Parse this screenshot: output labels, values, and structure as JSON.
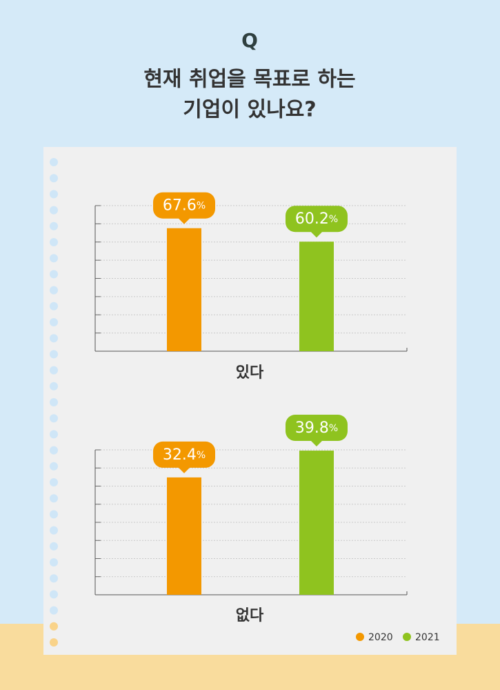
{
  "header": {
    "mark": "Q",
    "title_lines": [
      "현재 취업을 목표로 하는",
      "기업이 있나요?"
    ]
  },
  "chart_data": [
    {
      "type": "bar",
      "categories": [
        "있다"
      ],
      "series": [
        {
          "name": "2020",
          "color": "#f39800",
          "values": [
            67.6
          ],
          "value_labels": [
            "67.6%"
          ]
        },
        {
          "name": "2021",
          "color": "#8fc31f",
          "values": [
            60.2
          ],
          "value_labels": [
            "60.2%"
          ]
        }
      ],
      "ylim": [
        0,
        80
      ],
      "yticks": [
        0,
        10,
        20,
        30,
        40,
        50,
        60,
        70,
        80
      ],
      "grid": true
    },
    {
      "type": "bar",
      "categories": [
        "없다"
      ],
      "series": [
        {
          "name": "2020",
          "color": "#f39800",
          "values": [
            32.4
          ],
          "value_labels": [
            "32.4%"
          ]
        },
        {
          "name": "2021",
          "color": "#8fc31f",
          "values": [
            39.8
          ],
          "value_labels": [
            "39.8%"
          ]
        }
      ],
      "ylim": [
        0,
        40
      ],
      "yticks": [
        0,
        5,
        10,
        15,
        20,
        25,
        30,
        35,
        40
      ],
      "grid": true
    }
  ]
}
